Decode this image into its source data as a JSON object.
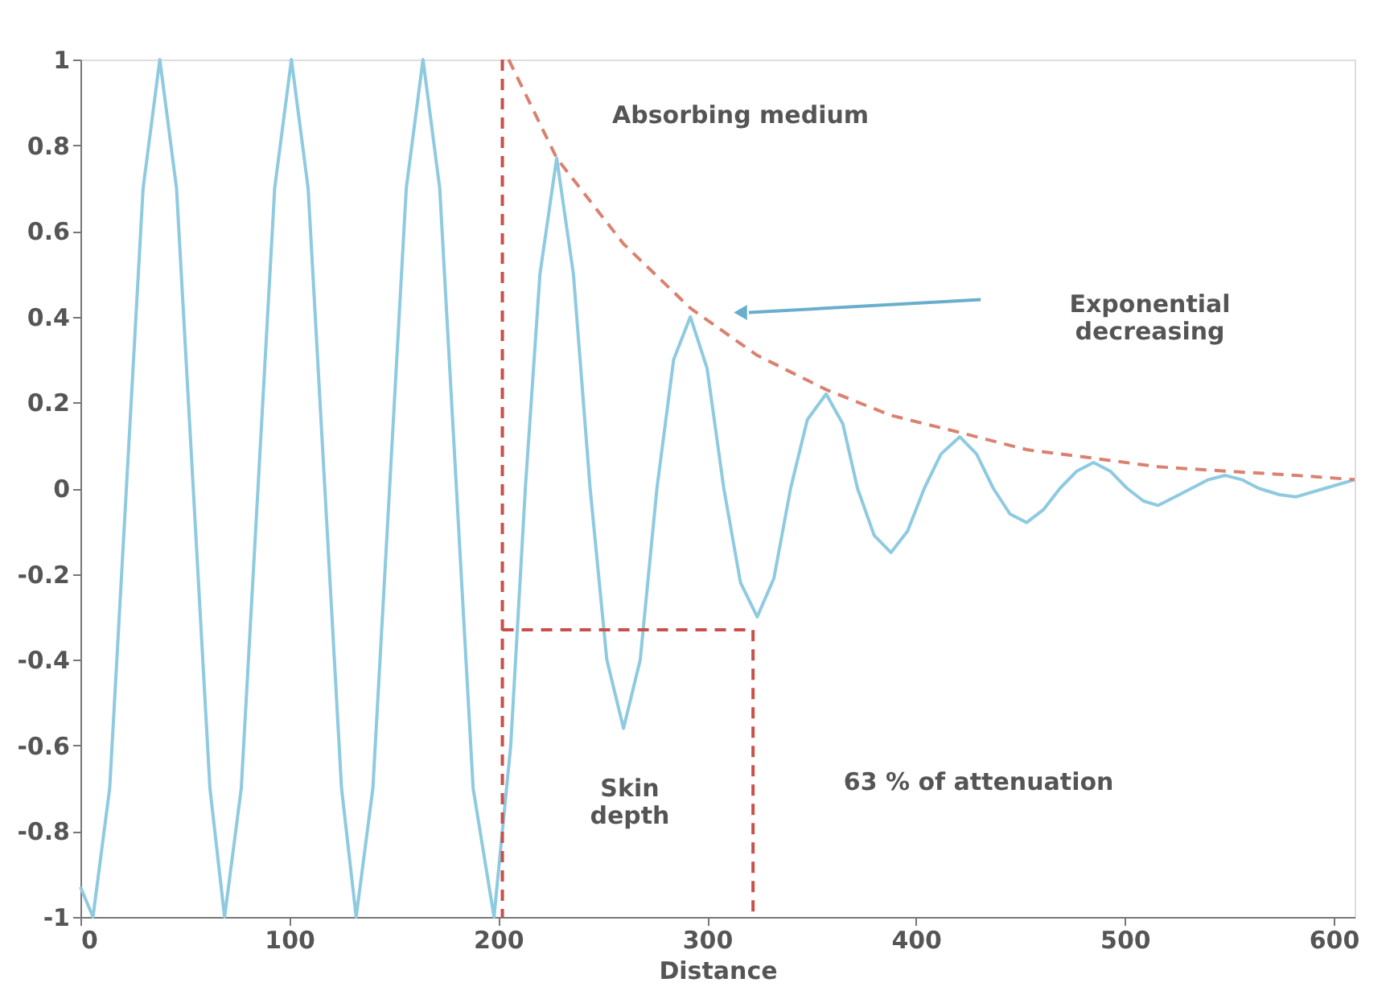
{
  "chart_data": {
    "type": "line",
    "xlabel": "Distance",
    "xlim": [
      0,
      610
    ],
    "xticks": [
      0,
      100,
      200,
      300,
      400,
      500,
      600
    ],
    "ylim": [
      -1,
      1
    ],
    "yticks": [
      -1,
      -0.8,
      -0.6,
      -0.4,
      -0.2,
      0,
      0.2,
      0.4,
      0.6,
      0.8,
      1
    ],
    "grid": false,
    "marker": "none",
    "series": [
      {
        "color": "#8ecae0",
        "line_style": "solid",
        "x": [
          0,
          6,
          14,
          22,
          30,
          38,
          46,
          54,
          62,
          69,
          77,
          85,
          93,
          101,
          109,
          117,
          125,
          132,
          140,
          148,
          156,
          164,
          172,
          180,
          188,
          198,
          206,
          213,
          220,
          228,
          236,
          244,
          252,
          260,
          268,
          276,
          284,
          292,
          300,
          308,
          316,
          324,
          332,
          340,
          348,
          357,
          365,
          372,
          380,
          388,
          396,
          404,
          412,
          421,
          429,
          437,
          445,
          453,
          461,
          469,
          477,
          485,
          493,
          501,
          509,
          516,
          524,
          532,
          540,
          548,
          556,
          564,
          574,
          582,
          596,
          610
        ],
        "values": [
          -0.93,
          -1,
          -0.7,
          0,
          0.7,
          1,
          0.7,
          0,
          -0.7,
          -1,
          -0.7,
          0,
          0.7,
          1,
          0.7,
          0,
          -0.7,
          -1,
          -0.7,
          0,
          0.7,
          1,
          0.7,
          0,
          -0.7,
          -1,
          -0.6,
          0,
          0.5,
          0.77,
          0.5,
          0,
          -0.4,
          -0.56,
          -0.4,
          0,
          0.3,
          0.4,
          0.28,
          0,
          -0.22,
          -0.3,
          -0.21,
          0,
          0.16,
          0.22,
          0.15,
          0,
          -0.11,
          -0.15,
          -0.1,
          0,
          0.08,
          0.12,
          0.08,
          0,
          -0.06,
          -0.08,
          -0.05,
          0,
          0.04,
          0.06,
          0.04,
          0,
          -0.03,
          -0.04,
          -0.02,
          0,
          0.02,
          0.03,
          0.02,
          0,
          -0.015,
          -0.02,
          0,
          0.02
        ]
      },
      {
        "color": "#d9826f",
        "line_style": "dashed",
        "x": [
          205,
          228,
          260,
          292,
          324,
          357,
          388,
          421,
          453,
          485,
          516,
          548,
          582,
          610
        ],
        "values": [
          1,
          0.77,
          0.57,
          0.42,
          0.31,
          0.23,
          0.17,
          0.13,
          0.09,
          0.07,
          0.05,
          0.04,
          0.03,
          0.02
        ]
      },
      {
        "color": "#c9504a",
        "line_style": "dashed",
        "x": [
          202,
          322,
          322
        ],
        "values": [
          -0.33,
          -0.33,
          -1
        ]
      }
    ],
    "ref_lines": [
      {
        "axis": "x",
        "value": 202,
        "color": "#c9504a",
        "line_style": "dashed"
      }
    ],
    "annotations": [
      "Absorbing medium",
      "Exponential\ndecreasing",
      "Skin\ndepth",
      "63 % of attenuation"
    ]
  }
}
